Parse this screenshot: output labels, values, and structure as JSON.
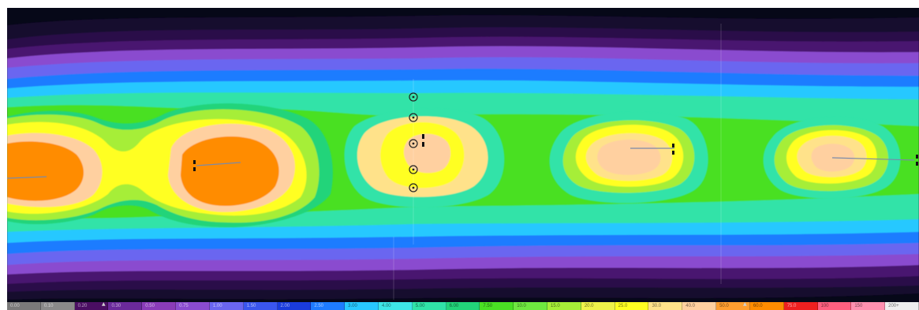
{
  "map": {
    "type": "illuminance-contour",
    "colors": {
      "background": "#060818",
      "levels": [
        "#14082e",
        "#2a0c4a",
        "#4a1470",
        "#6a2a9a",
        "#8a4ccf",
        "#6a66f0",
        "#3a56ee",
        "#1e7cff",
        "#28c8ff",
        "#3ee6e8",
        "#30e3a8",
        "#22d47a",
        "#4ae024",
        "#a6ee38",
        "#eef24a",
        "#ffff22",
        "#ffe28a",
        "#ffd0a0",
        "#ff9e30",
        "#ff8c00"
      ],
      "scale": [
        "#7a7a7a",
        "#8a8a8a",
        "#4a0e62",
        "#6a2a9a",
        "#8a3cb8",
        "#8a4ccf",
        "#6a66f0",
        "#3a56ee",
        "#1a3cdc",
        "#1e7cff",
        "#28c8ff",
        "#3ee6e8",
        "#30e3a8",
        "#22d47a",
        "#4ae024",
        "#6ee840",
        "#a6ee38",
        "#eef24a",
        "#ffff22",
        "#ffe28a",
        "#ffd0a0",
        "#ff9e30",
        "#ff8c00",
        "#ee2020",
        "#ff6080",
        "#ff90b0",
        "#eeeeee"
      ]
    },
    "light_sources": [
      {
        "kind": "pole-with-fixtures"
      },
      {
        "kind": "pole-with-fixtures"
      },
      {
        "kind": "pole-with-fixtures"
      },
      {
        "kind": "pole-with-fixtures"
      },
      {
        "kind": "pole-with-fixtures"
      }
    ],
    "measurement_points": 5
  },
  "scale": {
    "labels": [
      "0.00",
      "0.10",
      "0.20",
      "0.30",
      "0.50",
      "0.75",
      "1.00",
      "1.50",
      "2.00",
      "2.50",
      "3.00",
      "4.00",
      "5.00",
      "6.00",
      "7.50",
      "10.0",
      "15.0",
      "20.0",
      "25.0",
      "30.0",
      "40.0",
      "50.0",
      "60.0",
      "75.0",
      "100",
      "150",
      "200+"
    ]
  }
}
